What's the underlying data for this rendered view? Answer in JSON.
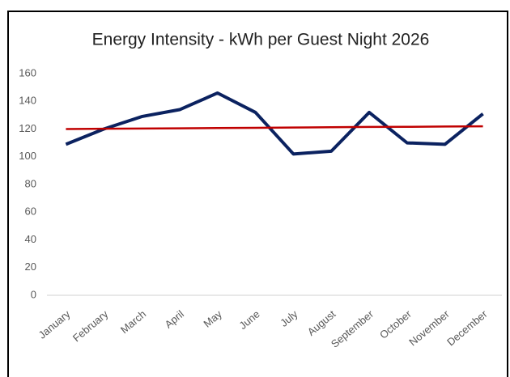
{
  "chart_data": {
    "type": "line",
    "title": "Energy Intensity - kWh per Guest Night 2026",
    "categories": [
      "January",
      "February",
      "March",
      "April",
      "May",
      "June",
      "July",
      "August",
      "September",
      "October",
      "November",
      "December"
    ],
    "series": [
      {
        "color": "#0b2260",
        "values": [
          109,
          120,
          129,
          134,
          146,
          132,
          102,
          104,
          132,
          110,
          109,
          131
        ]
      },
      {
        "color": "#c00000",
        "values": [
          120,
          120.2,
          120.4,
          120.5,
          120.7,
          120.9,
          121.1,
          121.3,
          121.5,
          121.6,
          121.8,
          122
        ]
      }
    ],
    "ylim": [
      0,
      160
    ],
    "yticks": [
      0,
      20,
      40,
      60,
      80,
      100,
      120,
      140,
      160
    ],
    "grid": false
  }
}
